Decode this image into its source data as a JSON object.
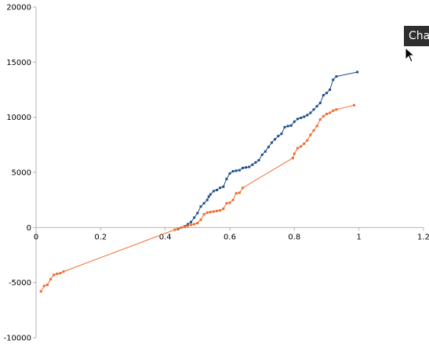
{
  "tooltip": {
    "text": "Cha"
  },
  "chart_data": {
    "type": "line",
    "title": "",
    "xlabel": "",
    "ylabel": "",
    "xlim": [
      0,
      1.2
    ],
    "ylim": [
      -10000,
      20000
    ],
    "x_ticks": [
      "0",
      "0.2",
      "0.4",
      "0.6",
      "0.8",
      "1",
      "1.2"
    ],
    "y_ticks": [
      "20000",
      "15000",
      "10000",
      "5000",
      "0",
      "-5000",
      "-10000"
    ],
    "grid": false,
    "legend": "none",
    "series": [
      {
        "color": "#1f4e8c",
        "points": [
          [
            0.44,
            -150
          ],
          [
            0.46,
            100
          ],
          [
            0.47,
            300
          ],
          [
            0.48,
            500
          ],
          [
            0.49,
            900
          ],
          [
            0.5,
            1300
          ],
          [
            0.51,
            1900
          ],
          [
            0.52,
            2200
          ],
          [
            0.53,
            2500
          ],
          [
            0.535,
            2800
          ],
          [
            0.54,
            3000
          ],
          [
            0.55,
            3300
          ],
          [
            0.56,
            3400
          ],
          [
            0.57,
            3600
          ],
          [
            0.58,
            3700
          ],
          [
            0.59,
            4400
          ],
          [
            0.6,
            4900
          ],
          [
            0.61,
            5100
          ],
          [
            0.62,
            5150
          ],
          [
            0.63,
            5200
          ],
          [
            0.64,
            5400
          ],
          [
            0.65,
            5450
          ],
          [
            0.66,
            5500
          ],
          [
            0.67,
            5700
          ],
          [
            0.68,
            5900
          ],
          [
            0.69,
            6100
          ],
          [
            0.7,
            6600
          ],
          [
            0.71,
            6900
          ],
          [
            0.72,
            7300
          ],
          [
            0.73,
            7700
          ],
          [
            0.74,
            8000
          ],
          [
            0.75,
            8300
          ],
          [
            0.76,
            8500
          ],
          [
            0.77,
            9100
          ],
          [
            0.78,
            9200
          ],
          [
            0.79,
            9250
          ],
          [
            0.8,
            9600
          ],
          [
            0.81,
            9850
          ],
          [
            0.82,
            9950
          ],
          [
            0.83,
            10050
          ],
          [
            0.84,
            10200
          ],
          [
            0.85,
            10400
          ],
          [
            0.86,
            10700
          ],
          [
            0.87,
            11000
          ],
          [
            0.88,
            11300
          ],
          [
            0.89,
            12000
          ],
          [
            0.9,
            12200
          ],
          [
            0.91,
            12500
          ],
          [
            0.92,
            13400
          ],
          [
            0.93,
            13700
          ],
          [
            0.995,
            14100
          ]
        ]
      },
      {
        "color": "#f26a2a",
        "points": [
          [
            0.015,
            -5800
          ],
          [
            0.025,
            -5300
          ],
          [
            0.035,
            -5200
          ],
          [
            0.045,
            -4700
          ],
          [
            0.055,
            -4300
          ],
          [
            0.065,
            -4200
          ],
          [
            0.075,
            -4150
          ],
          [
            0.085,
            -4000
          ],
          [
            0.43,
            -200
          ],
          [
            0.44,
            -100
          ],
          [
            0.45,
            0
          ],
          [
            0.46,
            50
          ],
          [
            0.47,
            150
          ],
          [
            0.48,
            250
          ],
          [
            0.49,
            300
          ],
          [
            0.5,
            400
          ],
          [
            0.51,
            700
          ],
          [
            0.52,
            1200
          ],
          [
            0.53,
            1350
          ],
          [
            0.54,
            1400
          ],
          [
            0.55,
            1450
          ],
          [
            0.56,
            1500
          ],
          [
            0.57,
            1550
          ],
          [
            0.58,
            1700
          ],
          [
            0.59,
            2200
          ],
          [
            0.6,
            2250
          ],
          [
            0.61,
            2500
          ],
          [
            0.62,
            3100
          ],
          [
            0.63,
            3150
          ],
          [
            0.64,
            3600
          ],
          [
            0.795,
            6300
          ],
          [
            0.8,
            6700
          ],
          [
            0.81,
            7200
          ],
          [
            0.82,
            7350
          ],
          [
            0.83,
            7600
          ],
          [
            0.84,
            7900
          ],
          [
            0.85,
            8400
          ],
          [
            0.86,
            8800
          ],
          [
            0.87,
            9200
          ],
          [
            0.88,
            9800
          ],
          [
            0.89,
            10100
          ],
          [
            0.9,
            10300
          ],
          [
            0.91,
            10400
          ],
          [
            0.92,
            10600
          ],
          [
            0.93,
            10700
          ],
          [
            0.985,
            11100
          ]
        ]
      }
    ]
  }
}
